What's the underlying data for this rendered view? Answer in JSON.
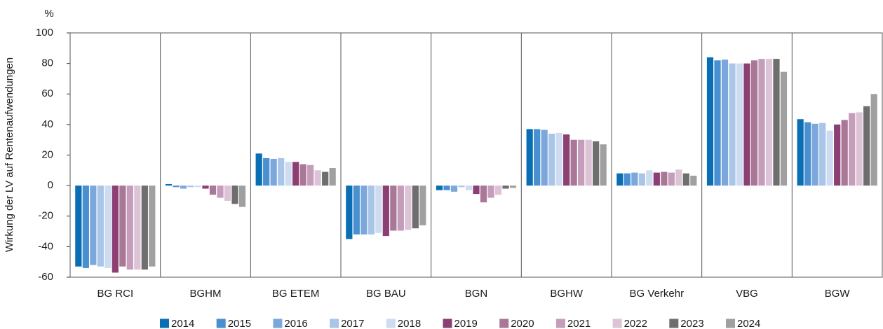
{
  "chart_data": {
    "type": "bar",
    "unit_label": "%",
    "y_axis_label": "Wirkung der LV auf Rentenaufwendungen",
    "categories": [
      "BG RCI",
      "BGHM",
      "BG ETEM",
      "BG BAU",
      "BGN",
      "BGHW",
      "BG Verkehr",
      "VBG",
      "BGW"
    ],
    "ylim": [
      -60,
      100
    ],
    "yticks": [
      -60,
      -40,
      -20,
      0,
      20,
      40,
      60,
      80,
      100
    ],
    "grid": false,
    "legend": "bottom",
    "series": [
      {
        "name": "2014",
        "color": "#0a6eb4",
        "values": [
          -53,
          1,
          21,
          -35,
          -3,
          37,
          8,
          84,
          43.5
        ]
      },
      {
        "name": "2015",
        "color": "#4a8fd0",
        "values": [
          -54,
          -1,
          18,
          -32,
          -3,
          37,
          8,
          82,
          41.5
        ]
      },
      {
        "name": "2016",
        "color": "#7ba7dc",
        "values": [
          -52,
          -2,
          17.5,
          -32,
          -4,
          36.5,
          8.5,
          82.5,
          40.5
        ]
      },
      {
        "name": "2017",
        "color": "#a9c5e8",
        "values": [
          -53,
          -1,
          18,
          -32,
          -1,
          34,
          8,
          80,
          41
        ]
      },
      {
        "name": "2018",
        "color": "#cddcf1",
        "values": [
          -54,
          -1,
          15.5,
          -31,
          -3,
          34.5,
          10,
          80,
          36
        ]
      },
      {
        "name": "2019",
        "color": "#8c3f73",
        "values": [
          -57,
          -2,
          15.5,
          -33,
          -5.5,
          33.5,
          8.5,
          80,
          40
        ]
      },
      {
        "name": "2020",
        "color": "#a97896",
        "values": [
          -53,
          -6,
          14,
          -29.5,
          -11,
          30,
          9,
          82,
          43
        ]
      },
      {
        "name": "2021",
        "color": "#c59dbb",
        "values": [
          -55,
          -8,
          13.5,
          -29.5,
          -8,
          30,
          8.5,
          83,
          47.5
        ]
      },
      {
        "name": "2022",
        "color": "#dcc4d6",
        "values": [
          -55,
          -10,
          10,
          -29,
          -6,
          30,
          10.5,
          83,
          48
        ]
      },
      {
        "name": "2023",
        "color": "#6e6e6e",
        "values": [
          -55,
          -12,
          9,
          -28,
          -2,
          29,
          8,
          83,
          52
        ]
      },
      {
        "name": "2024",
        "color": "#a0a0a0",
        "values": [
          -53,
          -14,
          11.5,
          -26,
          -1.5,
          27,
          6.5,
          74.5,
          60
        ]
      }
    ]
  }
}
